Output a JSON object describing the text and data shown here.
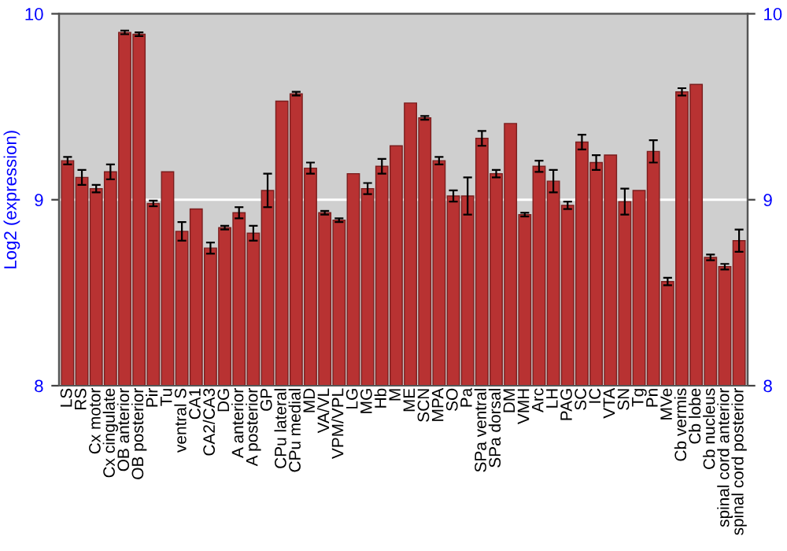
{
  "chart_data": {
    "type": "bar",
    "ylabel": "Log2 (expression)",
    "categories": [
      "LS",
      "RS",
      "Cx motor",
      "Cx cingulate",
      "OB anterior",
      "OB posterior",
      "Pir",
      "Tu",
      "ventral S",
      "CA1",
      "CA2/CA3",
      "DG",
      "A anterior",
      "A posterior",
      "GP",
      "CPu lateral",
      "CPu medial",
      "MD",
      "VA/VL",
      "VPM/VPL",
      "LG",
      "MG",
      "Hb",
      "M",
      "ME",
      "SCN",
      "MPA",
      "SO",
      "Pa",
      "SPa ventral",
      "SPa dorsal",
      "DM",
      "VMH",
      "Arc",
      "LH",
      "PAG",
      "SC",
      "IC",
      "VTA",
      "SN",
      "Tg",
      "Pn",
      "MVe",
      "Cb vermis",
      "Cb lobe",
      "Cb nucleus",
      "spinal cord anterior",
      "spinal cord posterior"
    ],
    "values": [
      9.21,
      9.12,
      9.06,
      9.15,
      9.9,
      9.89,
      8.98,
      9.15,
      8.83,
      8.95,
      8.74,
      8.85,
      8.93,
      8.82,
      9.05,
      9.53,
      9.57,
      9.17,
      8.93,
      8.89,
      9.14,
      9.06,
      9.18,
      9.29,
      9.52,
      9.44,
      9.21,
      9.02,
      9.02,
      9.33,
      9.14,
      9.41,
      8.92,
      9.18,
      9.1,
      8.97,
      9.31,
      9.2,
      9.24,
      8.99,
      9.05,
      9.26,
      8.56,
      9.58,
      9.62,
      8.69,
      8.64,
      8.78
    ],
    "errors": [
      0.02,
      0.04,
      0.02,
      0.04,
      0.01,
      0.01,
      0.015,
      null,
      0.05,
      null,
      0.03,
      0.01,
      0.03,
      0.04,
      0.09,
      null,
      0.01,
      0.03,
      0.01,
      0.01,
      null,
      0.03,
      0.04,
      null,
      null,
      0.01,
      0.02,
      0.03,
      0.1,
      0.04,
      0.02,
      null,
      0.01,
      0.03,
      0.06,
      0.02,
      0.04,
      0.04,
      null,
      0.07,
      null,
      0.06,
      0.02,
      0.02,
      null,
      0.015,
      0.015,
      0.06
    ],
    "color": "#b83232",
    "ylim": [
      8,
      10
    ],
    "yticks": [
      8,
      9,
      10
    ],
    "y2lim": [
      8,
      10
    ],
    "y2ticks": [
      8,
      9,
      10
    ],
    "grid": "y"
  }
}
